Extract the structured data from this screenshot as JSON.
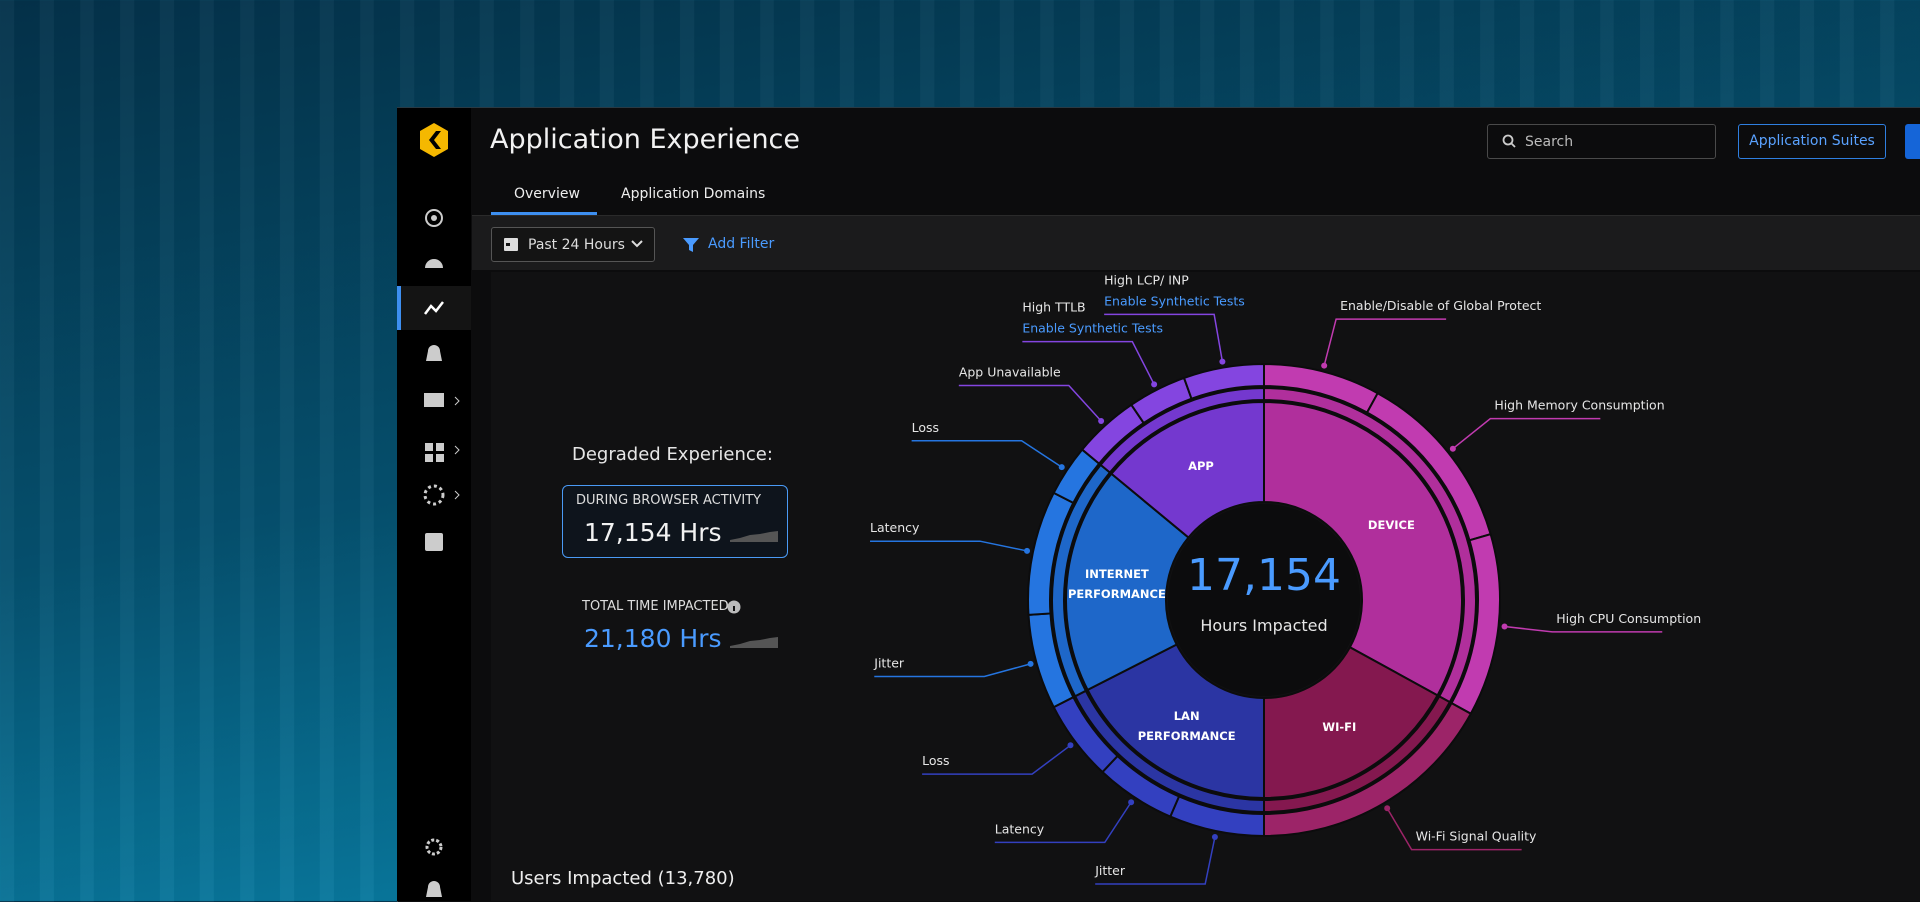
{
  "header": {
    "title": "Application Experience",
    "search_placeholder": "Search",
    "button": "Application Suites"
  },
  "tabs": [
    "Overview",
    "Application Domains"
  ],
  "toolbar": {
    "time_range": "Past 24 Hours",
    "filter": "Add Filter"
  },
  "summary": {
    "heading": "Degraded Experience:",
    "browser": {
      "label": "DURING BROWSER ACTIVITY",
      "value": "17,154 Hrs"
    },
    "total": {
      "label": "TOTAL TIME IMPACTED",
      "value": "21,180 Hrs"
    }
  },
  "users_impacted": "Users Impacted (13,780)",
  "sunburst": {
    "center_value": "17,154",
    "center_label": "Hours Impacted",
    "segments": [
      {
        "label": "DEVICE",
        "value": 33,
        "color": "#b02f9c",
        "outer_color": "#c13bb0",
        "children": [
          {
            "label": "Enable/Disable of Global Protect",
            "value": 8
          },
          {
            "label": "High Memory Consumption",
            "value": 12.5
          },
          {
            "label": "High CPU Consumption",
            "value": 12.5
          }
        ]
      },
      {
        "label": "WI-FI",
        "value": 17,
        "color": "#84184f",
        "outer_color": "#9c2468",
        "children": [
          {
            "label": "Wi-Fi Signal Quality",
            "value": 17
          }
        ]
      },
      {
        "label": "LAN PERFORMANCE",
        "value": 17.5,
        "color": "#2b35a3",
        "outer_color": "#3340c0",
        "children": [
          {
            "label": "Jitter",
            "value": 6.5
          },
          {
            "label": "Latency",
            "value": 5.5
          },
          {
            "label": "Loss",
            "value": 5.5
          }
        ]
      },
      {
        "label": "INTERNET PERFORMANCE",
        "value": 18.5,
        "color": "#1e67c9",
        "outer_color": "#2575e0",
        "children": [
          {
            "label": "Jitter",
            "value": 6.5
          },
          {
            "label": "Latency",
            "value": 8.5
          },
          {
            "label": "Loss",
            "value": 3.5
          }
        ]
      },
      {
        "label": "APP",
        "value": 14,
        "color": "#7438cf",
        "outer_color": "#8445e0",
        "children": [
          {
            "label": "App Unavailable",
            "value": 4.5
          },
          {
            "label": "High TTLB",
            "value": 4,
            "link": "Enable Synthetic Tests"
          },
          {
            "label": "High LCP/ INP",
            "value": 5.5,
            "link": "Enable Synthetic Tests"
          }
        ]
      }
    ]
  }
}
